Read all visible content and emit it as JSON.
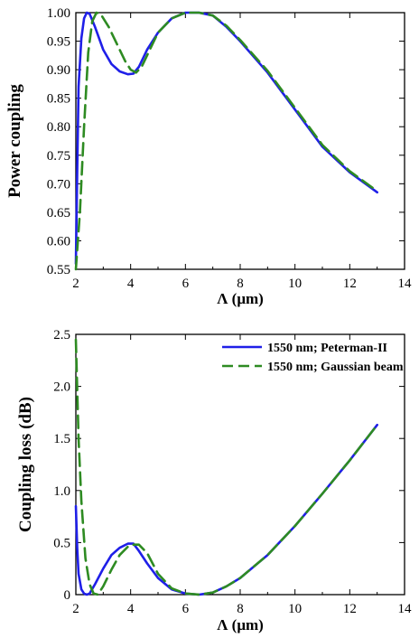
{
  "chart_data": [
    {
      "type": "line",
      "xlabel": "Λ (μm)",
      "ylabel": "Power coupling",
      "xlim": [
        2,
        14
      ],
      "ylim": [
        0.55,
        1.0
      ],
      "xticks": [
        "2",
        "4",
        "6",
        "8",
        "10",
        "12",
        "14"
      ],
      "yticks": [
        "0.55",
        "0.60",
        "0.65",
        "0.70",
        "0.75",
        "0.80",
        "0.85",
        "0.90",
        "0.95",
        "1.00"
      ],
      "grid": false,
      "colors": [
        "#1f1fe8",
        "#2e8b22"
      ],
      "series": [
        {
          "x": [
            2.0,
            2.05,
            2.1,
            2.2,
            2.3,
            2.4,
            2.5,
            2.7,
            3.0,
            3.3,
            3.6,
            3.9,
            4.1,
            4.3,
            4.6,
            5.0,
            5.5,
            6.0,
            6.5,
            7.0,
            7.5,
            8.0,
            9.0,
            10.0,
            11.0,
            12.0,
            13.0
          ],
          "y": [
            0.56,
            0.72,
            0.87,
            0.955,
            0.99,
            1.0,
            0.998,
            0.975,
            0.935,
            0.91,
            0.897,
            0.892,
            0.893,
            0.905,
            0.935,
            0.965,
            0.99,
            1.0,
            1.0,
            0.995,
            0.975,
            0.95,
            0.895,
            0.83,
            0.765,
            0.72,
            0.685
          ]
        },
        {
          "x": [
            2.0,
            2.15,
            2.3,
            2.45,
            2.6,
            2.75,
            2.9,
            3.2,
            3.5,
            3.8,
            4.0,
            4.2,
            4.4,
            4.7,
            5.0,
            5.5,
            6.0,
            6.5,
            7.0,
            7.5,
            8.0,
            9.0,
            10.0,
            11.0,
            12.0,
            13.0
          ],
          "y": [
            0.55,
            0.65,
            0.8,
            0.93,
            0.985,
            1.0,
            0.998,
            0.975,
            0.945,
            0.915,
            0.9,
            0.895,
            0.905,
            0.935,
            0.965,
            0.99,
            1.0,
            1.0,
            0.995,
            0.977,
            0.952,
            0.898,
            0.833,
            0.768,
            0.722,
            0.687
          ]
        }
      ]
    },
    {
      "type": "line",
      "xlabel": "Λ (μm)",
      "ylabel": "Coupling loss (dB)",
      "xlim": [
        2,
        14
      ],
      "ylim": [
        0,
        2.5
      ],
      "xticks": [
        "2",
        "4",
        "6",
        "8",
        "10",
        "12",
        "14"
      ],
      "yticks": [
        "0",
        "0.5",
        "1.0",
        "1.5",
        "2.0",
        "2.5"
      ],
      "grid": false,
      "legend_position": "top-right",
      "colors": [
        "#1f1fe8",
        "#2e8b22"
      ],
      "series": [
        {
          "name": "1550 nm; Peterman-II",
          "x": [
            2.0,
            2.05,
            2.1,
            2.2,
            2.3,
            2.4,
            2.5,
            2.7,
            3.0,
            3.3,
            3.6,
            3.9,
            4.1,
            4.3,
            4.6,
            5.0,
            5.5,
            6.0,
            6.5,
            7.0,
            7.5,
            8.0,
            9.0,
            10.0,
            11.0,
            12.0,
            13.0
          ],
          "y": [
            0.85,
            0.45,
            0.2,
            0.05,
            0.01,
            0.0,
            0.01,
            0.1,
            0.25,
            0.38,
            0.45,
            0.49,
            0.49,
            0.42,
            0.3,
            0.16,
            0.05,
            0.01,
            0.0,
            0.02,
            0.08,
            0.16,
            0.38,
            0.66,
            0.97,
            1.29,
            1.63
          ]
        },
        {
          "name": "1550 nm; Gaussian beam",
          "x": [
            2.0,
            2.1,
            2.2,
            2.35,
            2.5,
            2.65,
            2.8,
            3.0,
            3.3,
            3.6,
            3.9,
            4.1,
            4.3,
            4.6,
            5.0,
            5.5,
            6.0,
            6.5,
            7.0,
            7.5,
            8.0,
            9.0,
            10.0,
            11.0,
            12.0,
            13.0
          ],
          "y": [
            2.45,
            1.5,
            0.9,
            0.35,
            0.1,
            0.01,
            0.0,
            0.08,
            0.24,
            0.38,
            0.46,
            0.48,
            0.48,
            0.4,
            0.2,
            0.06,
            0.01,
            0.0,
            0.02,
            0.08,
            0.16,
            0.38,
            0.66,
            0.97,
            1.29,
            1.63
          ]
        }
      ]
    }
  ]
}
